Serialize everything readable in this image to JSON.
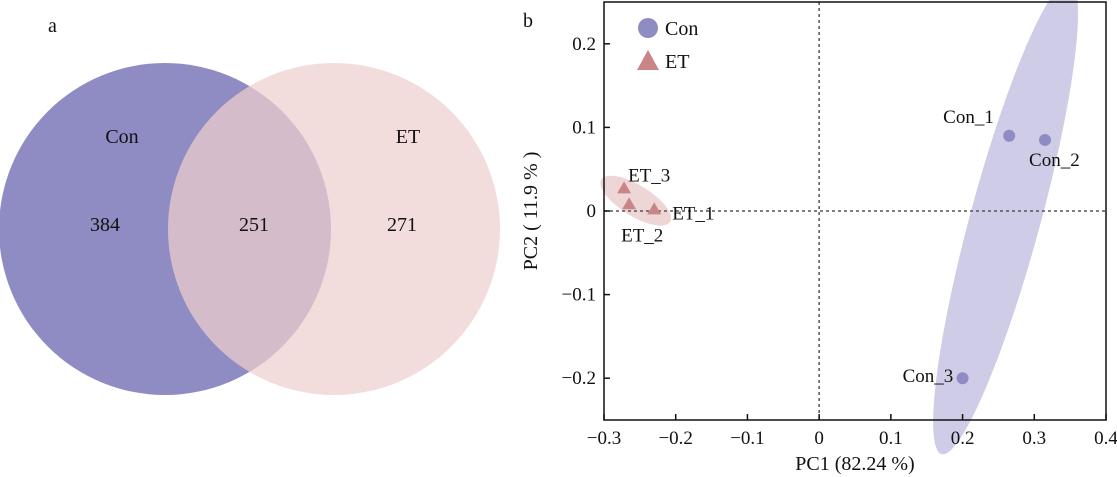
{
  "chart_data": [
    {
      "type": "venn",
      "panel_label": "a",
      "sets": [
        {
          "name": "Con",
          "only": "384",
          "color": "#8f8cc3"
        },
        {
          "name": "ET",
          "only": "271",
          "color": "#efcfcf"
        }
      ],
      "intersection": "251"
    },
    {
      "type": "scatter",
      "panel_label": "b",
      "xlabel": "PC1 (82.24 %)",
      "ylabel": "PC2 ( 11.9 % )",
      "xlim": [
        -0.3,
        0.4
      ],
      "ylim": [
        -0.25,
        0.25
      ],
      "xticks": [
        -0.3,
        -0.2,
        -0.1,
        0,
        0.1,
        0.2,
        0.3,
        0.4
      ],
      "xtick_labels": [
        "−0.3",
        "−0.2",
        "−0.1",
        "0",
        "0.1",
        "0.2",
        "0.3",
        "0.4"
      ],
      "yticks": [
        0.2,
        0.1,
        0,
        -0.1,
        -0.2
      ],
      "ytick_labels": [
        "0.2",
        "0.1",
        "0",
        "−0.1",
        "−0.2"
      ],
      "legend_position": "top-left",
      "series": [
        {
          "name": "Con",
          "marker": "circle",
          "color": "#8f8cc3",
          "ellipse_color": "#c9c7e3",
          "points": [
            {
              "label": "Con_1",
              "x": 0.265,
              "y": 0.09
            },
            {
              "label": "Con_2",
              "x": 0.315,
              "y": 0.085
            },
            {
              "label": "Con_3",
              "x": 0.2,
              "y": -0.2
            }
          ]
        },
        {
          "name": "ET",
          "marker": "triangle",
          "color": "#c98585",
          "ellipse_color": "#ecd2d2",
          "points": [
            {
              "label": "ET_1",
              "x": -0.23,
              "y": 0.002
            },
            {
              "label": "ET_2",
              "x": -0.265,
              "y": 0.008
            },
            {
              "label": "ET_3",
              "x": -0.272,
              "y": 0.027
            }
          ]
        }
      ]
    }
  ]
}
